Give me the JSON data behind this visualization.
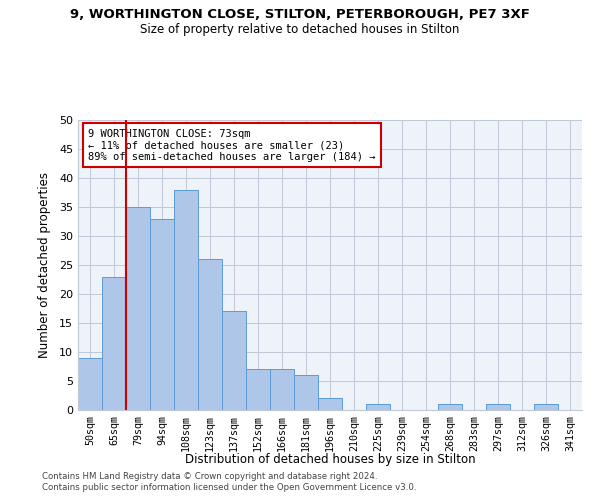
{
  "title1": "9, WORTHINGTON CLOSE, STILTON, PETERBOROUGH, PE7 3XF",
  "title2": "Size of property relative to detached houses in Stilton",
  "xlabel": "Distribution of detached houses by size in Stilton",
  "ylabel": "Number of detached properties",
  "categories": [
    "50sqm",
    "65sqm",
    "79sqm",
    "94sqm",
    "108sqm",
    "123sqm",
    "137sqm",
    "152sqm",
    "166sqm",
    "181sqm",
    "196sqm",
    "210sqm",
    "225sqm",
    "239sqm",
    "254sqm",
    "268sqm",
    "283sqm",
    "297sqm",
    "312sqm",
    "326sqm",
    "341sqm"
  ],
  "values": [
    9,
    23,
    35,
    33,
    38,
    26,
    17,
    7,
    7,
    6,
    2,
    0,
    1,
    0,
    0,
    1,
    0,
    1,
    0,
    1,
    0
  ],
  "bar_color": "#aec6e8",
  "bar_edge_color": "#5b9bd5",
  "vline_x": 1.5,
  "vline_color": "#cc0000",
  "annotation_text": "9 WORTHINGTON CLOSE: 73sqm\n← 11% of detached houses are smaller (23)\n89% of semi-detached houses are larger (184) →",
  "annotation_box_color": "#ffffff",
  "annotation_box_edge": "#cc0000",
  "ylim": [
    0,
    50
  ],
  "yticks": [
    0,
    5,
    10,
    15,
    20,
    25,
    30,
    35,
    40,
    45,
    50
  ],
  "footer1": "Contains HM Land Registry data © Crown copyright and database right 2024.",
  "footer2": "Contains public sector information licensed under the Open Government Licence v3.0.",
  "bg_color": "#eef2f9"
}
